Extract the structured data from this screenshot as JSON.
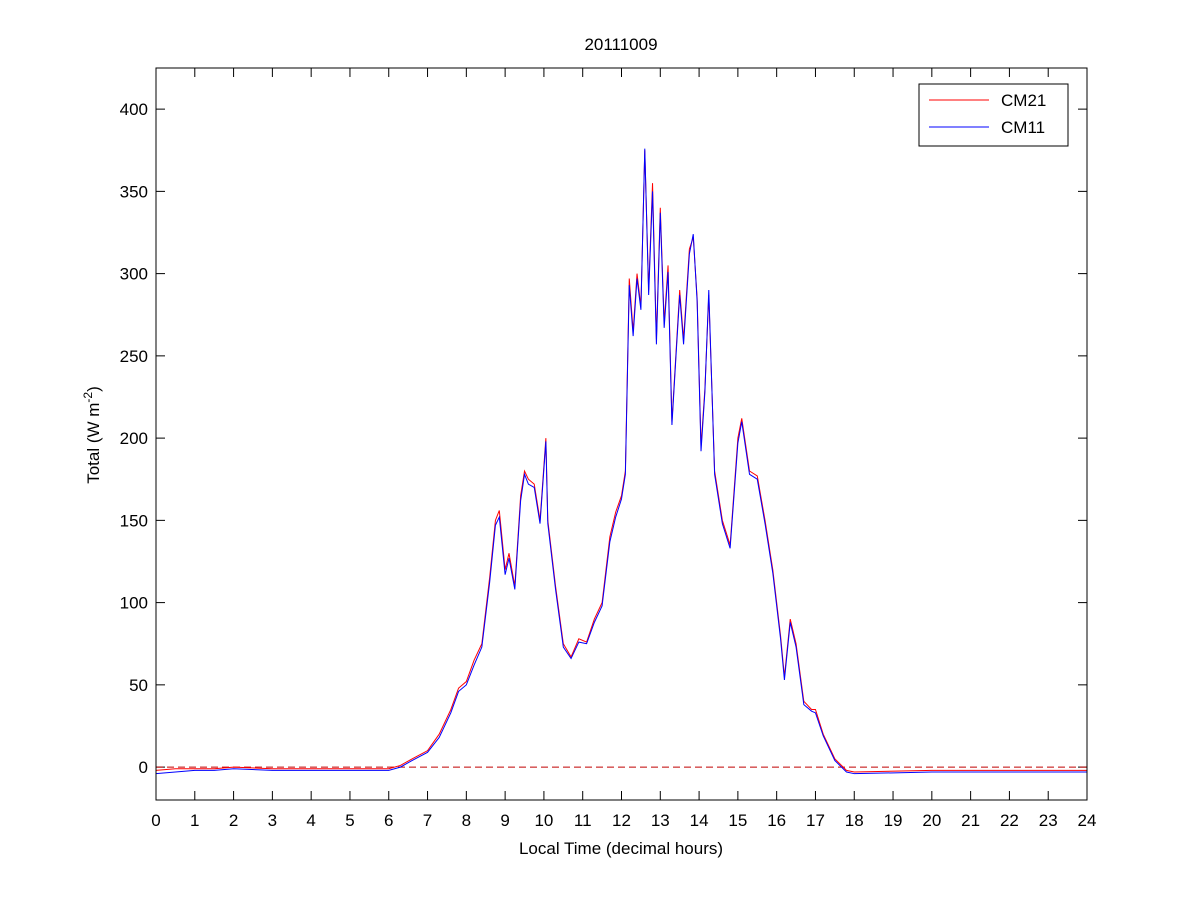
{
  "chart_data": {
    "type": "line",
    "title": "20111009",
    "xlabel": "Local Time (decimal hours)",
    "ylabel": [
      "Total (W m",
      "-2",
      ")"
    ],
    "x": [
      0,
      0.5,
      1,
      1.5,
      2,
      3,
      4,
      5,
      6,
      6.3,
      6.6,
      7,
      7.3,
      7.6,
      7.8,
      8,
      8.2,
      8.4,
      8.6,
      8.75,
      8.85,
      9,
      9.1,
      9.25,
      9.4,
      9.5,
      9.6,
      9.75,
      9.9,
      10.05,
      10.1,
      10.3,
      10.5,
      10.7,
      10.9,
      11.1,
      11.3,
      11.5,
      11.7,
      11.85,
      12,
      12.1,
      12.2,
      12.3,
      12.4,
      12.5,
      12.6,
      12.7,
      12.8,
      12.9,
      13,
      13.1,
      13.2,
      13.3,
      13.4,
      13.5,
      13.6,
      13.75,
      13.85,
      13.95,
      14.05,
      14.15,
      14.25,
      14.4,
      14.6,
      14.8,
      15,
      15.1,
      15.3,
      15.5,
      15.7,
      15.9,
      16.1,
      16.2,
      16.35,
      16.5,
      16.7,
      16.9,
      17,
      17.2,
      17.5,
      17.8,
      18,
      20,
      22,
      24
    ],
    "series": [
      {
        "name": "CM21",
        "color": "#ff0000",
        "values": [
          -2,
          -1,
          -1,
          -1,
          0,
          -1,
          -1,
          -1,
          -1,
          1,
          5,
          10,
          20,
          35,
          48,
          52,
          65,
          75,
          115,
          150,
          156,
          120,
          130,
          110,
          165,
          180,
          175,
          172,
          150,
          200,
          150,
          110,
          75,
          67,
          78,
          76,
          90,
          100,
          140,
          155,
          165,
          180,
          297,
          265,
          300,
          280,
          375,
          290,
          355,
          260,
          340,
          270,
          305,
          210,
          250,
          290,
          260,
          315,
          322,
          285,
          195,
          230,
          287,
          180,
          150,
          135,
          200,
          212,
          180,
          177,
          150,
          120,
          80,
          55,
          90,
          75,
          40,
          35,
          35,
          20,
          5,
          -2,
          -3,
          -2,
          -2,
          -2
        ]
      },
      {
        "name": "CM11",
        "color": "#0000ff",
        "values": [
          -4,
          -3,
          -2,
          -2,
          -1,
          -2,
          -2,
          -2,
          -2,
          0,
          4,
          9,
          18,
          33,
          46,
          50,
          62,
          73,
          112,
          147,
          152,
          117,
          127,
          108,
          162,
          178,
          172,
          170,
          148,
          198,
          148,
          108,
          73,
          66,
          76,
          75,
          88,
          98,
          137,
          152,
          163,
          178,
          293,
          262,
          297,
          278,
          376,
          287,
          350,
          257,
          337,
          267,
          301,
          208,
          248,
          287,
          257,
          312,
          324,
          283,
          192,
          228,
          290,
          178,
          148,
          133,
          197,
          210,
          178,
          175,
          148,
          118,
          78,
          53,
          88,
          73,
          38,
          34,
          33,
          19,
          4,
          -3,
          -4,
          -3,
          -3,
          -3
        ]
      }
    ],
    "xlim": [
      0,
      24
    ],
    "xticks": [
      0,
      1,
      2,
      3,
      4,
      5,
      6,
      7,
      8,
      9,
      10,
      11,
      12,
      13,
      14,
      15,
      16,
      17,
      18,
      19,
      20,
      21,
      22,
      23,
      24
    ],
    "ylim": [
      -20,
      425
    ],
    "yticks": [
      0,
      50,
      100,
      150,
      200,
      250,
      300,
      350,
      400
    ],
    "reference_line": {
      "value": 0,
      "color": "#c00000",
      "style": "dashed"
    },
    "legend": "top-right",
    "grid": false
  }
}
